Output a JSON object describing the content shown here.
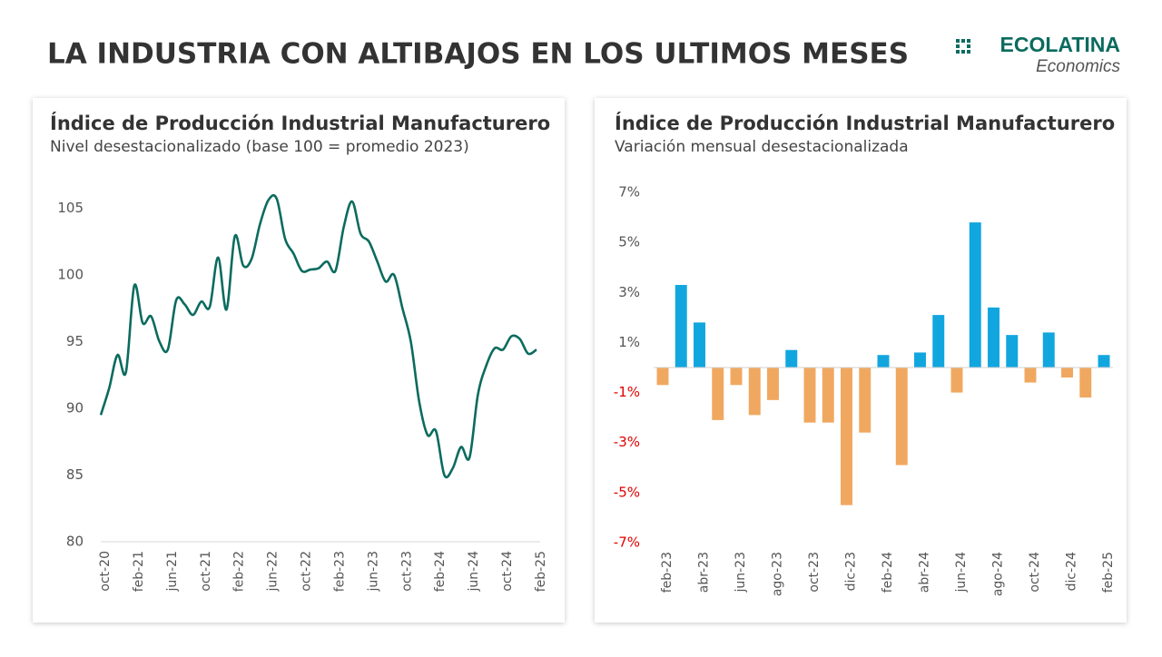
{
  "header": {
    "title": "LA INDUSTRIA CON ALTIBAJOS EN LOS ULTIMOS MESES",
    "logo": "ECOLATINA",
    "logo_sub": "Economics"
  },
  "chart_data": [
    {
      "type": "line",
      "title": "Índice de Producción Industrial Manufacturero",
      "subtitle": "Nivel desestacionalizado (base 100 = promedio 2023)",
      "categories": [
        "oct-20",
        null,
        null,
        null,
        "feb-21",
        null,
        null,
        null,
        "jun-21",
        null,
        null,
        null,
        "oct-21",
        null,
        null,
        null,
        "feb-22",
        null,
        null,
        null,
        "jun-22",
        null,
        null,
        null,
        "oct-22",
        null,
        null,
        null,
        "feb-23",
        null,
        null,
        null,
        "jun-23",
        null,
        null,
        null,
        "oct-23",
        null,
        null,
        null,
        "feb-24",
        null,
        null,
        null,
        "jun-24",
        null,
        null,
        null,
        "oct-24",
        null,
        null,
        null,
        "feb-25"
      ],
      "values": [
        89.5,
        91.5,
        94.0,
        92.7,
        99.2,
        96.4,
        96.9,
        95.0,
        94.4,
        98.1,
        97.8,
        97.0,
        98.0,
        97.6,
        101.3,
        97.4,
        102.9,
        100.7,
        101.2,
        103.8,
        105.6,
        105.7,
        102.7,
        101.6,
        100.3,
        100.4,
        100.5,
        101.0,
        100.3,
        103.6,
        105.5,
        103.1,
        102.5,
        101.0,
        99.5,
        100.0,
        97.5,
        95.0,
        90.5,
        88.0,
        88.3,
        85.0,
        85.5,
        87.1,
        86.3,
        91.0,
        93.2,
        94.5,
        94.4,
        95.4,
        95.2,
        94.1,
        94.4
      ],
      "color": "#0b6b5e",
      "ylim": [
        80,
        107
      ],
      "yticks": [
        80,
        85,
        90,
        95,
        100,
        105
      ]
    },
    {
      "type": "bar",
      "title": "Índice de Producción Industrial Manufacturero",
      "subtitle": "Variación mensual desestacionalizada",
      "categories": [
        "feb-23",
        null,
        "abr-23",
        null,
        "jun-23",
        null,
        "ago-23",
        null,
        "oct-23",
        null,
        "dic-23",
        null,
        "feb-24",
        null,
        "abr-24",
        null,
        "jun-24",
        null,
        "ago-24",
        null,
        "oct-24",
        null,
        "dic-24",
        null,
        "feb-25"
      ],
      "values": [
        -0.7,
        3.3,
        1.8,
        -2.1,
        -0.7,
        -1.9,
        -1.3,
        0.7,
        -2.2,
        -2.2,
        -5.5,
        -2.6,
        0.5,
        -3.9,
        0.6,
        2.1,
        -1.0,
        5.8,
        2.4,
        1.3,
        -0.6,
        1.4,
        -0.4,
        -1.2,
        0.5
      ],
      "positive_color": "#12a6df",
      "negative_color": "#f0a860",
      "negative_tick_color": "#e00000",
      "ylim": [
        -7,
        7
      ],
      "yticks": [
        {
          "value": -7,
          "label": "-7%"
        },
        {
          "value": -5,
          "label": "-5%"
        },
        {
          "value": -3,
          "label": "-3%"
        },
        {
          "value": -1,
          "label": "-1%"
        },
        {
          "value": 1,
          "label": "1%"
        },
        {
          "value": 3,
          "label": "3%"
        },
        {
          "value": 5,
          "label": "5%"
        },
        {
          "value": 7,
          "label": "7%"
        }
      ]
    }
  ]
}
